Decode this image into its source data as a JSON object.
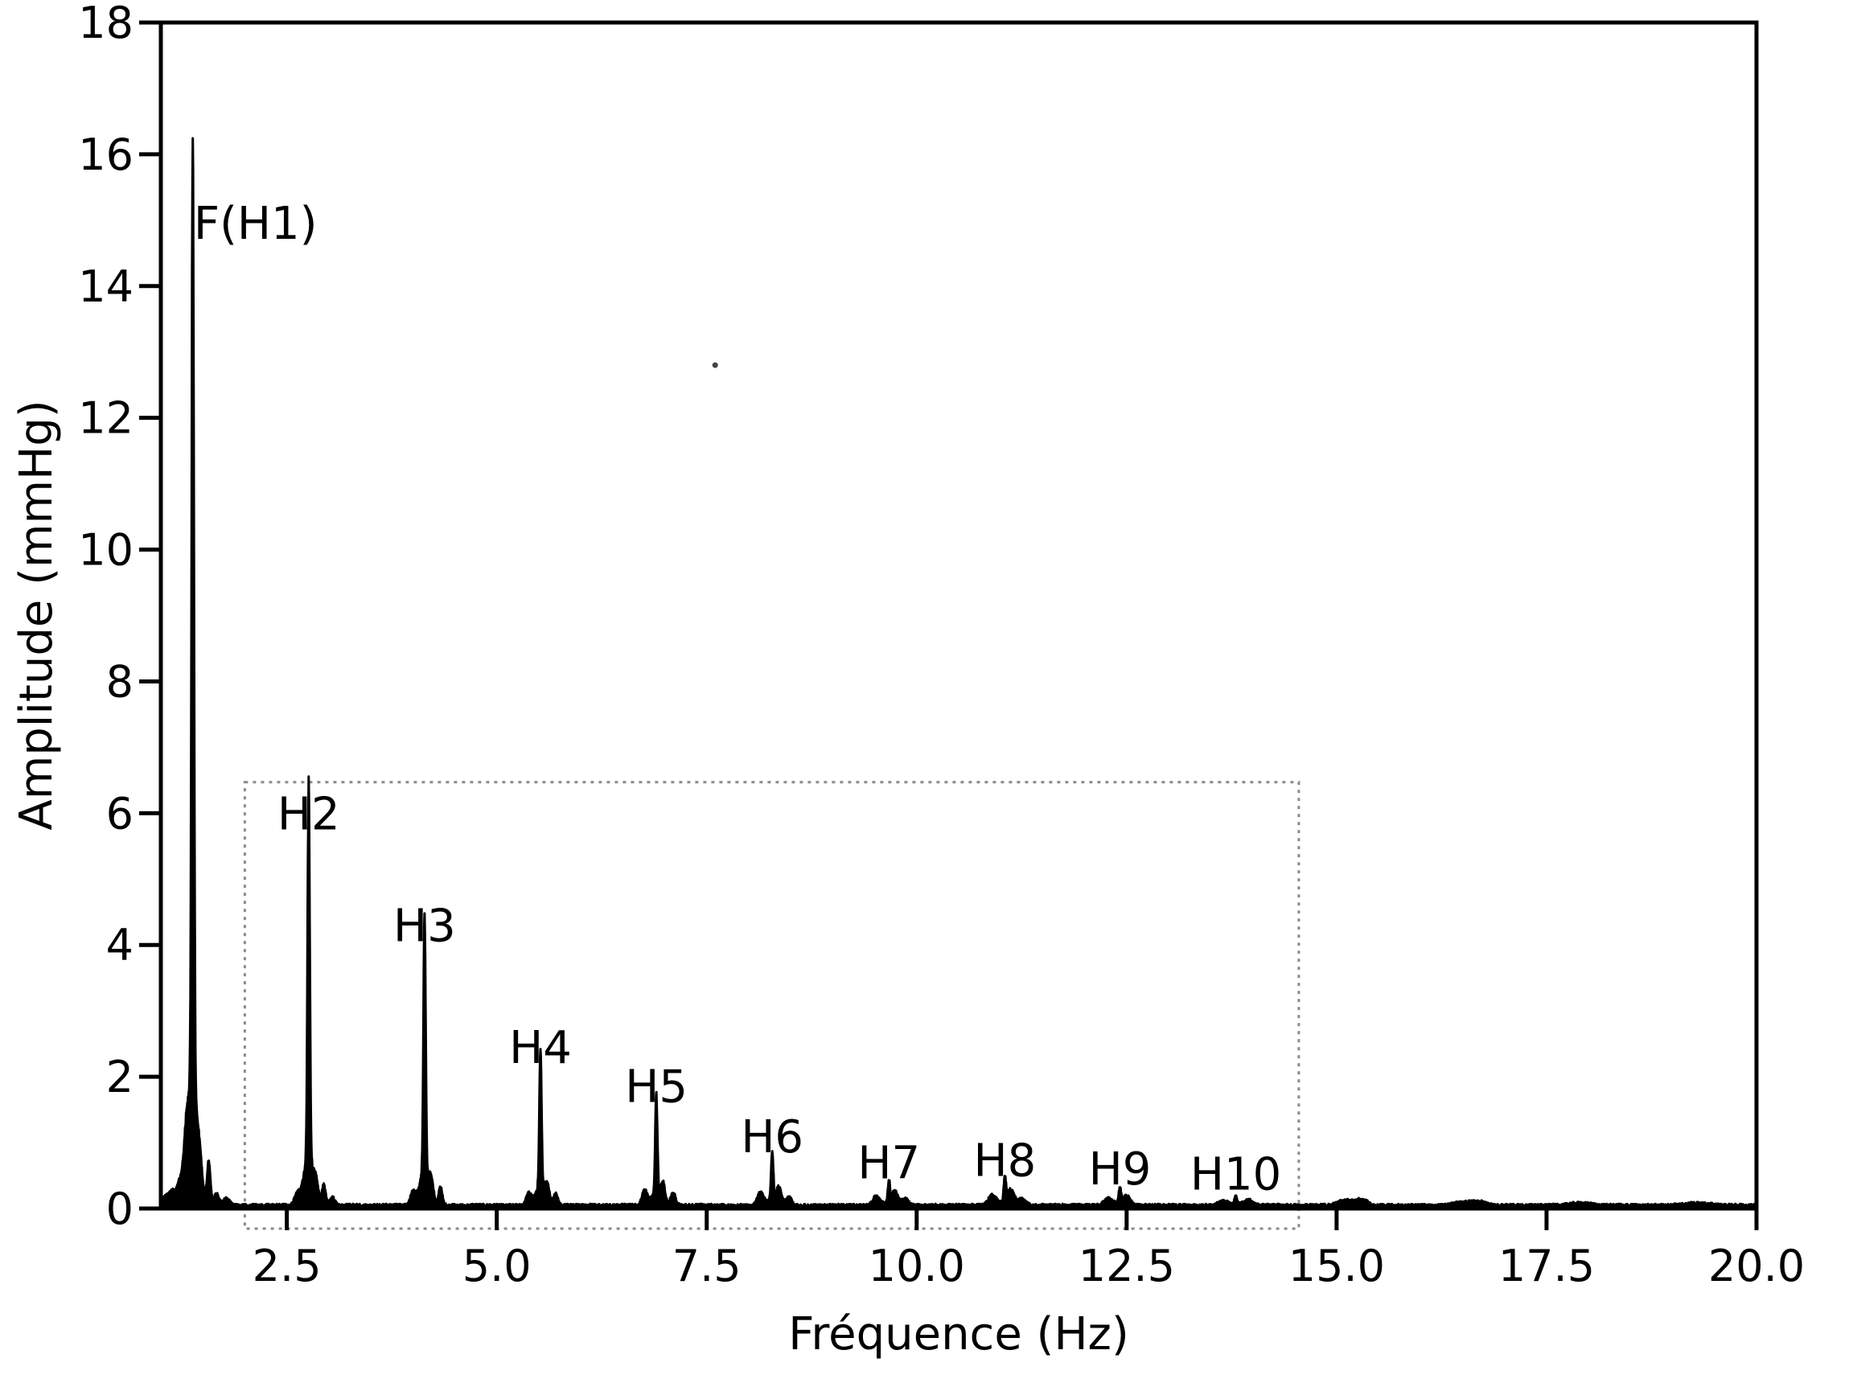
{
  "chart_data": {
    "type": "line",
    "title": "",
    "xlabel": "Fréquence (Hz)",
    "ylabel": "Amplitude (mmHg)",
    "xlim": [
      1.0,
      20.0
    ],
    "ylim": [
      0,
      18
    ],
    "grid": false,
    "line_color": "#000000",
    "background_color": "#ffffff",
    "annotation_box_color": "#8a8a8a",
    "x_ticks": [
      2.5,
      5.0,
      7.5,
      10.0,
      12.5,
      15.0,
      17.5,
      20.0
    ],
    "x_tick_labels": [
      "2.5",
      "5.0",
      "7.5",
      "10.0",
      "12.5",
      "15.0",
      "17.5",
      "20.0"
    ],
    "y_ticks": [
      0,
      2,
      4,
      6,
      8,
      10,
      12,
      14,
      16,
      18
    ],
    "y_tick_labels": [
      "0",
      "2",
      "4",
      "6",
      "8",
      "10",
      "12",
      "14",
      "16",
      "18"
    ],
    "peaks": [
      {
        "label": "F(H1)",
        "freq": 1.38,
        "amplitude": 14.57,
        "label_dx": 78
      },
      {
        "label": "H2",
        "freq": 2.76,
        "amplitude": 5.61
      },
      {
        "label": "H3",
        "freq": 4.14,
        "amplitude": 3.91
      },
      {
        "label": "H4",
        "freq": 5.52,
        "amplitude": 2.06
      },
      {
        "label": "H5",
        "freq": 6.9,
        "amplitude": 1.47
      },
      {
        "label": "H6",
        "freq": 8.28,
        "amplitude": 0.71
      },
      {
        "label": "H7",
        "freq": 9.67,
        "amplitude": 0.31
      },
      {
        "label": "H8",
        "freq": 11.05,
        "amplitude": 0.35
      },
      {
        "label": "H9",
        "freq": 12.42,
        "amplitude": 0.22
      },
      {
        "label": "H10",
        "freq": 13.8,
        "amplitude": 0.14
      }
    ],
    "minor_bumps": [
      [
        1.05,
        0.12,
        0.04
      ],
      [
        1.13,
        0.2,
        0.035
      ],
      [
        1.22,
        0.33,
        0.035
      ],
      [
        1.3,
        0.55,
        0.03
      ],
      [
        1.47,
        0.25,
        0.025
      ],
      [
        1.57,
        0.66,
        0.02
      ],
      [
        1.66,
        0.18,
        0.03
      ],
      [
        1.78,
        0.1,
        0.04
      ],
      [
        2.62,
        0.15,
        0.03
      ],
      [
        2.85,
        0.22,
        0.025
      ],
      [
        2.94,
        0.3,
        0.022
      ],
      [
        3.04,
        0.12,
        0.03
      ],
      [
        4.0,
        0.18,
        0.03
      ],
      [
        4.22,
        0.25,
        0.025
      ],
      [
        4.33,
        0.28,
        0.022
      ],
      [
        5.38,
        0.18,
        0.03
      ],
      [
        5.6,
        0.25,
        0.025
      ],
      [
        5.7,
        0.18,
        0.025
      ],
      [
        6.76,
        0.22,
        0.03
      ],
      [
        6.98,
        0.28,
        0.025
      ],
      [
        7.1,
        0.2,
        0.028
      ],
      [
        8.14,
        0.2,
        0.035
      ],
      [
        8.36,
        0.25,
        0.03
      ],
      [
        8.48,
        0.12,
        0.035
      ],
      [
        9.52,
        0.14,
        0.04
      ],
      [
        9.74,
        0.2,
        0.035
      ],
      [
        9.86,
        0.1,
        0.04
      ],
      [
        10.9,
        0.16,
        0.045
      ],
      [
        11.12,
        0.22,
        0.04
      ],
      [
        11.25,
        0.1,
        0.045
      ],
      [
        12.28,
        0.1,
        0.05
      ],
      [
        12.5,
        0.13,
        0.045
      ],
      [
        13.65,
        0.06,
        0.06
      ],
      [
        13.95,
        0.08,
        0.05
      ],
      [
        15.1,
        0.08,
        0.08
      ],
      [
        15.3,
        0.09,
        0.07
      ],
      [
        16.5,
        0.05,
        0.1
      ],
      [
        16.7,
        0.05,
        0.08
      ],
      [
        17.9,
        0.035,
        0.12
      ],
      [
        19.3,
        0.03,
        0.15
      ]
    ],
    "noise_floor": 0.05,
    "annotation_box": {
      "x0": 2.0,
      "x1": 14.55,
      "y_top": 6.47,
      "style": "dotted"
    },
    "artifact_dot": {
      "freq": 7.6,
      "amplitude": 12.8
    }
  }
}
